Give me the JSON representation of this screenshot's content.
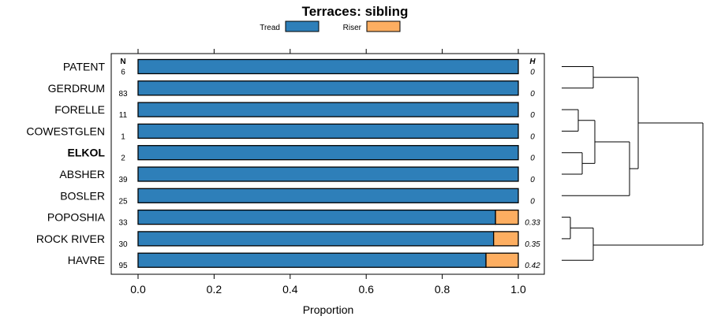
{
  "chart_data": {
    "type": "bar",
    "stacked": true,
    "orientation": "horizontal",
    "title": "Terraces: sibling",
    "xlabel": "Proportion",
    "xlim": [
      0,
      1
    ],
    "xticks": [
      "0.0",
      "0.2",
      "0.4",
      "0.6",
      "0.8",
      "1.0"
    ],
    "legend": [
      {
        "name": "Tread",
        "color": "#2e7fb9"
      },
      {
        "name": "Riser",
        "color": "#fdae61"
      }
    ],
    "n_header": "N",
    "h_header": "H",
    "categories": [
      {
        "label": "PATENT",
        "n": "6",
        "h": "0",
        "tread": 1.0,
        "riser": 0.0,
        "bold": false
      },
      {
        "label": "GERDRUM",
        "n": "83",
        "h": "0",
        "tread": 1.0,
        "riser": 0.0,
        "bold": false
      },
      {
        "label": "FORELLE",
        "n": "11",
        "h": "0",
        "tread": 1.0,
        "riser": 0.0,
        "bold": false
      },
      {
        "label": "COWESTGLEN",
        "n": "1",
        "h": "0",
        "tread": 1.0,
        "riser": 0.0,
        "bold": false
      },
      {
        "label": "ELKOL",
        "n": "2",
        "h": "0",
        "tread": 1.0,
        "riser": 0.0,
        "bold": true
      },
      {
        "label": "ABSHER",
        "n": "39",
        "h": "0",
        "tread": 1.0,
        "riser": 0.0,
        "bold": false
      },
      {
        "label": "BOSLER",
        "n": "25",
        "h": "0",
        "tread": 1.0,
        "riser": 0.0,
        "bold": false
      },
      {
        "label": "POPOSHIA",
        "n": "33",
        "h": "0.33",
        "tread": 0.94,
        "riser": 0.06,
        "bold": false
      },
      {
        "label": "ROCK RIVER",
        "n": "30",
        "h": "0.35",
        "tread": 0.935,
        "riser": 0.065,
        "bold": false
      },
      {
        "label": "HAVRE",
        "n": "95",
        "h": "0.42",
        "tread": 0.915,
        "riser": 0.085,
        "bold": false
      }
    ]
  }
}
